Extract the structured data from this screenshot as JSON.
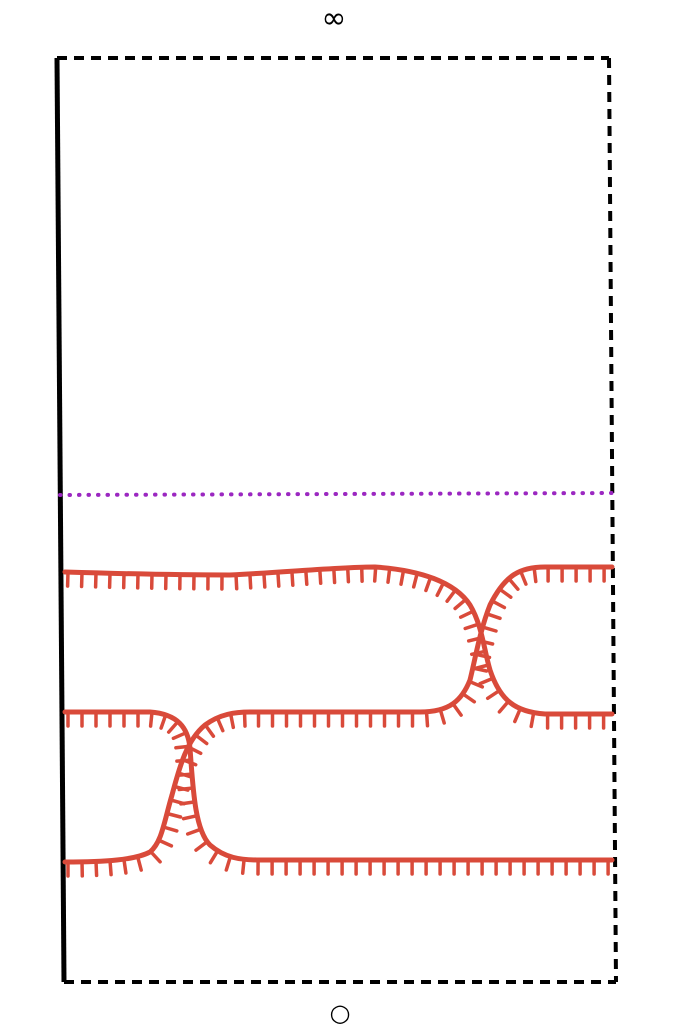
{
  "labels": {
    "top": "∞",
    "bottom": "○"
  },
  "colors": {
    "boundary": "#000000",
    "strands": "#d94a3a",
    "dotted_line": "#9b27c1",
    "background": "#ffffff"
  }
}
